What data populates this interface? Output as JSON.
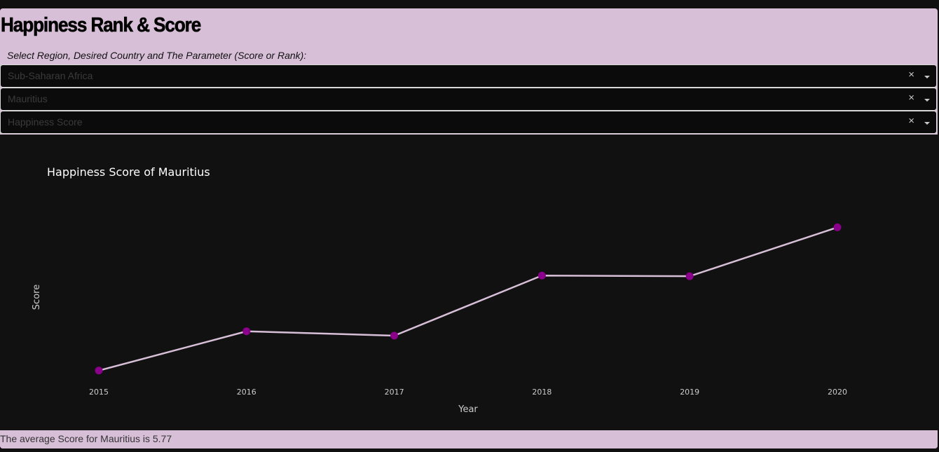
{
  "header": {
    "title": "Happiness Rank & Score",
    "instructions": "Select Region, Desired Country and The Parameter (Score or Rank):"
  },
  "dropdowns": {
    "region": {
      "value": "Sub-Saharan Africa",
      "clear": "×"
    },
    "country": {
      "value": "Mauritius",
      "clear": "×"
    },
    "parameter": {
      "value": "Happiness Score",
      "clear": "×"
    }
  },
  "colors": {
    "line": "#d8bfd8",
    "marker": "#8b008b",
    "accent": "#d8bfd8",
    "background": "#111111"
  },
  "chart_data": {
    "type": "line",
    "title": "Happiness Score of Mauritius",
    "xlabel": "Year",
    "ylabel": "Score",
    "x": [
      "2015",
      "2016",
      "2017",
      "2018",
      "2019",
      "2020"
    ],
    "series": [
      {
        "values": [
          5.477,
          5.648,
          5.629,
          5.891,
          5.888,
          6.101
        ]
      }
    ],
    "ylim": [
      5.4,
      6.2
    ],
    "grid": false,
    "legend": false
  },
  "footer": {
    "summary": "The average Score for Mauritius is 5.77"
  }
}
